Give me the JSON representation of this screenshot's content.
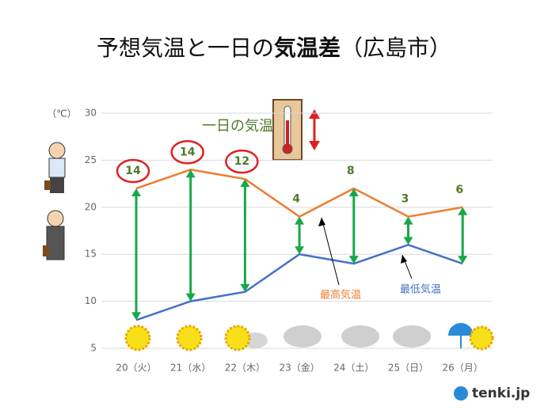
{
  "chart_data": {
    "type": "line",
    "title": [
      "予想気温と一日の",
      "気温差",
      "（広島市）"
    ],
    "y_unit": "（℃）",
    "categories": [
      "20（火）",
      "21（水）",
      "22（木）",
      "23（金）",
      "24（土）",
      "25（日）",
      "26（月）"
    ],
    "series": [
      {
        "name": "最高気温",
        "color": "#ed7d31",
        "values": [
          22,
          24,
          23,
          19,
          22,
          19,
          20
        ]
      },
      {
        "name": "最低気温",
        "color": "#4472c4",
        "values": [
          8,
          10,
          11,
          15,
          14,
          16,
          14
        ]
      }
    ],
    "differences": {
      "name": "一日の気温差",
      "color": "#18a848",
      "label_color": "#4e7a2a",
      "values": [
        14,
        14,
        12,
        4,
        8,
        3,
        6
      ],
      "circled": [
        true,
        true,
        true,
        false,
        false,
        false,
        false
      ],
      "circle_color": "#e02020"
    },
    "ylim": [
      5,
      30
    ],
    "yticks": [
      5,
      10,
      15,
      20,
      25,
      30
    ],
    "grid": true,
    "source": "tenki.jp"
  }
}
